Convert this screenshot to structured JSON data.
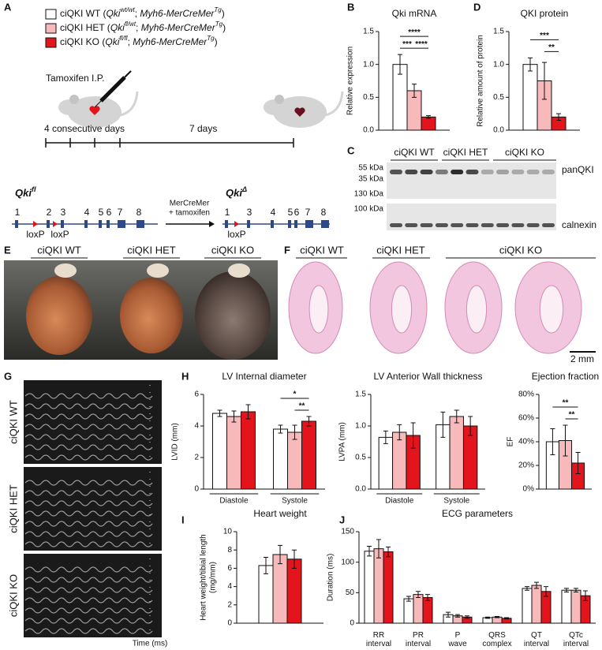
{
  "chart_data": [
    {
      "type": "bar",
      "title": "Qki mRNA",
      "ylabel": "Relative expression",
      "series": [
        {
          "color": "#ffffff",
          "values": [
            1.0
          ],
          "errors": [
            0.15
          ]
        },
        {
          "color": "#f7b9b9",
          "values": [
            0.6
          ],
          "errors": [
            0.1
          ]
        },
        {
          "color": "#e3141b",
          "values": [
            0.2
          ],
          "errors": [
            0.02
          ]
        }
      ],
      "ylim": [
        0,
        1.5
      ],
      "yticks": [
        {
          "value": 0,
          "label": "0.0"
        },
        0.5,
        {
          "value": 1,
          "label": "1.0"
        },
        1.5
      ],
      "annotations": [
        {
          "text": "***",
          "between": [
            0,
            1
          ]
        },
        {
          "text": "****",
          "between": [
            0,
            2
          ]
        },
        {
          "text": "****",
          "between": [
            1,
            2
          ]
        }
      ]
    },
    {
      "type": "bar",
      "title": "QKI protein",
      "ylabel": "Relative amount of protein",
      "series": [
        {
          "color": "#ffffff",
          "values": [
            1.0
          ],
          "errors": [
            0.1
          ]
        },
        {
          "color": "#f7b9b9",
          "values": [
            0.75
          ],
          "errors": [
            0.28
          ]
        },
        {
          "color": "#e3141b",
          "values": [
            0.2
          ],
          "errors": [
            0.05
          ]
        }
      ],
      "ylim": [
        0,
        1.5
      ],
      "yticks": [
        {
          "value": 0,
          "label": "0.0"
        },
        0.5,
        {
          "value": 1,
          "label": "1.0"
        },
        1.5
      ],
      "annotations": [
        {
          "text": "***",
          "between": [
            0,
            2
          ]
        },
        {
          "text": "**",
          "between": [
            1,
            2
          ]
        }
      ]
    },
    {
      "type": "bar",
      "title": "LV Internal diameter",
      "ylabel": "LVID (mm)",
      "categories": [
        "Diastole",
        "Systole"
      ],
      "series": [
        {
          "color": "#ffffff",
          "values": [
            4.8,
            3.8
          ],
          "errors": [
            0.2,
            0.25
          ]
        },
        {
          "color": "#f7b9b9",
          "values": [
            4.6,
            3.6
          ],
          "errors": [
            0.35,
            0.45
          ]
        },
        {
          "color": "#e3141b",
          "values": [
            4.9,
            4.3
          ],
          "errors": [
            0.45,
            0.3
          ]
        }
      ],
      "ylim": [
        0,
        6
      ],
      "yticks": [
        0,
        2,
        4,
        6
      ],
      "annotations": [
        {
          "text": "*",
          "between": [
            0,
            2
          ]
        },
        {
          "text": "**",
          "between": [
            1,
            2
          ]
        }
      ]
    },
    {
      "type": "bar",
      "title": "LV Anterior Wall thickness",
      "ylabel": "LVPA (mm)",
      "categories": [
        "Diastole",
        "Systole"
      ],
      "series": [
        {
          "color": "#ffffff",
          "values": [
            0.82,
            1.02
          ],
          "errors": [
            0.1,
            0.2
          ]
        },
        {
          "color": "#f7b9b9",
          "values": [
            0.9,
            1.15
          ],
          "errors": [
            0.12,
            0.1
          ]
        },
        {
          "color": "#e3141b",
          "values": [
            0.85,
            1.0
          ],
          "errors": [
            0.2,
            0.15
          ]
        }
      ],
      "ylim": [
        0,
        1.5
      ],
      "yticks": [
        {
          "value": 0,
          "label": "0.0"
        },
        0.5,
        {
          "value": 1,
          "label": "1.0"
        },
        1.5
      ]
    },
    {
      "type": "bar",
      "title": "Ejection fraction",
      "ylabel": "EF",
      "series": [
        {
          "color": "#ffffff",
          "values": [
            40
          ],
          "errors": [
            11
          ]
        },
        {
          "color": "#f7b9b9",
          "values": [
            41
          ],
          "errors": [
            13
          ]
        },
        {
          "color": "#e3141b",
          "values": [
            22
          ],
          "errors": [
            9
          ]
        }
      ],
      "ylim": [
        0,
        80
      ],
      "yticks": [
        {
          "value": 0,
          "label": "0%"
        },
        {
          "value": 20,
          "label": "20%"
        },
        {
          "value": 40,
          "label": "40%"
        },
        {
          "value": 60,
          "label": "60%"
        },
        {
          "value": 80,
          "label": "80%"
        }
      ],
      "annotations": [
        {
          "text": "**",
          "between": [
            0,
            2
          ]
        },
        {
          "text": "**",
          "between": [
            1,
            2
          ]
        }
      ]
    },
    {
      "type": "bar",
      "title": "Heart weight",
      "ylabel": [
        "Heart weight/tibial length",
        "(mg/mm)"
      ],
      "series": [
        {
          "color": "#ffffff",
          "values": [
            6.3
          ],
          "errors": [
            0.9
          ]
        },
        {
          "color": "#f7b9b9",
          "values": [
            7.5
          ],
          "errors": [
            1.0
          ]
        },
        {
          "color": "#e3141b",
          "values": [
            7.0
          ],
          "errors": [
            1.0
          ]
        }
      ],
      "ylim": [
        0,
        10
      ],
      "yticks": [
        0,
        2,
        4,
        6,
        8,
        10
      ]
    },
    {
      "type": "bar",
      "title": "ECG parameters",
      "ylabel": "Duration (ms)",
      "categories": [
        "RR interval",
        "PR interval",
        "P wave",
        "QRS complex",
        "QT interval",
        "QTc interval"
      ],
      "series": [
        {
          "color": "#ffffff",
          "values": [
            118,
            40,
            14,
            9,
            57,
            54
          ],
          "errors": [
            8,
            4,
            4,
            1,
            3,
            3
          ]
        },
        {
          "color": "#f7b9b9",
          "values": [
            122,
            47,
            12,
            10,
            62,
            54
          ],
          "errors": [
            15,
            5,
            2,
            1,
            5,
            3
          ]
        },
        {
          "color": "#e3141b",
          "values": [
            117,
            42,
            10,
            8,
            52,
            45
          ],
          "errors": [
            8,
            5,
            2,
            1,
            8,
            8
          ]
        }
      ],
      "ylim": [
        0,
        150
      ],
      "yticks": [
        0,
        50,
        100,
        150
      ]
    }
  ],
  "panels": {
    "letters": [
      "A",
      "B",
      "C",
      "D",
      "E",
      "F",
      "G",
      "H",
      "I",
      "J"
    ],
    "legend": [
      {
        "name": "ciQKI WT",
        "genotype": [
          "Qki",
          "wt/wt",
          "; ",
          "Myh6-MerCreMer",
          "Tg"
        ]
      },
      {
        "name": "ciQKI HET",
        "genotype": [
          "Qki",
          "fl/wt",
          "; ",
          "Myh6-MerCreMer",
          "Tg"
        ]
      },
      {
        "name": "ciQKI KO",
        "genotype": [
          "Qki",
          "fl/fl",
          "; ",
          "Myh6-MerCreMer",
          "Tg"
        ]
      }
    ],
    "timeline": {
      "injection": "Tamoxifen I.P.",
      "phase1": "4 consecutive days",
      "phase2": "7 days"
    },
    "gene": {
      "flox": [
        "Qki",
        "fl"
      ],
      "delta": [
        "Qki",
        "Δ"
      ],
      "exons_flox": [
        "1",
        "2",
        "3",
        "4",
        "5",
        "6",
        "7",
        "8"
      ],
      "exons_delta": [
        "1",
        "3",
        "4",
        "5",
        "6",
        "7",
        "8"
      ],
      "loxp": "loxP",
      "arrow": [
        "MerCreMer",
        "+ tamoxifen"
      ]
    },
    "blot": {
      "groups": [
        "ciQKI WT",
        "ciQKI HET",
        "ciQKI KO"
      ],
      "markers": [
        "55 kDa",
        "35 kDa",
        "130 kDa",
        "100 kDa"
      ],
      "proteins": [
        "panQKI",
        "calnexin"
      ]
    },
    "hearts": [
      "ciQKI WT",
      "ciQKI HET",
      "ciQKI KO"
    ],
    "histology": {
      "groups": [
        "ciQKI WT",
        "ciQKI HET",
        "ciQKI KO"
      ],
      "scale": "2 mm"
    },
    "echo": {
      "groups": [
        "ciQKI WT",
        "ciQKI HET",
        "ciQKI KO"
      ],
      "axis": "Time (ms)"
    }
  }
}
